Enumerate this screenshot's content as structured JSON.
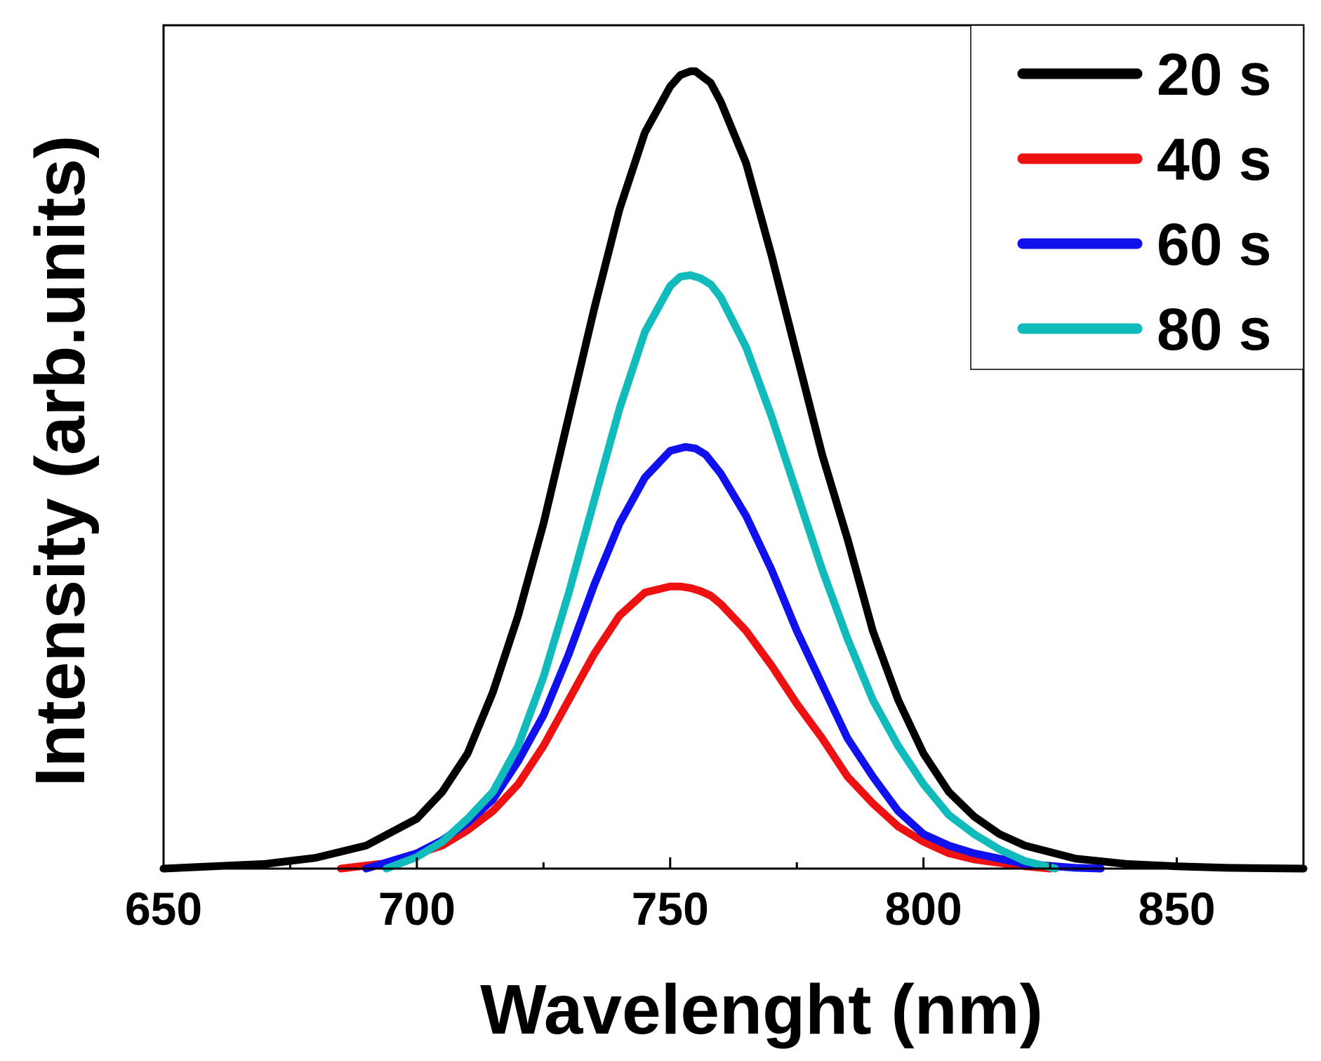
{
  "chart_data": {
    "type": "line",
    "title": "",
    "xlabel": "Wavelenght (nm)",
    "ylabel": "Intensity (arb.units)",
    "xlim": [
      650,
      875
    ],
    "ylim": [
      0,
      1.1
    ],
    "x_ticks": [
      650,
      700,
      750,
      800,
      850
    ],
    "x_tick_labels": [
      "650",
      "700",
      "750",
      "800",
      "850"
    ],
    "x_minor_ticks": [
      675,
      725,
      775,
      825
    ],
    "y_ticks_shown": false,
    "grid": false,
    "legend_position": "top-right",
    "series": [
      {
        "name": "20 s",
        "color": "#000000",
        "x": [
          650,
          670,
          680,
          690,
          700,
          705,
          710,
          715,
          720,
          725,
          730,
          735,
          740,
          745,
          750,
          752,
          754,
          755,
          756,
          758,
          760,
          765,
          770,
          775,
          780,
          785,
          790,
          795,
          800,
          805,
          810,
          815,
          820,
          830,
          840,
          850,
          860,
          875
        ],
        "y": [
          0.0,
          0.006,
          0.014,
          0.03,
          0.065,
          0.1,
          0.15,
          0.23,
          0.33,
          0.45,
          0.59,
          0.73,
          0.86,
          0.96,
          1.02,
          1.035,
          1.04,
          1.04,
          1.035,
          1.025,
          1.0,
          0.92,
          0.8,
          0.67,
          0.54,
          0.43,
          0.31,
          0.22,
          0.15,
          0.1,
          0.068,
          0.045,
          0.03,
          0.013,
          0.006,
          0.003,
          0.001,
          0.0
        ]
      },
      {
        "name": "40 s",
        "color": "#ee1111",
        "x": [
          685,
          695,
          705,
          710,
          715,
          720,
          725,
          730,
          735,
          740,
          745,
          750,
          752,
          754,
          756,
          758,
          760,
          765,
          770,
          775,
          780,
          785,
          790,
          795,
          800,
          805,
          810,
          820,
          825
        ],
        "y": [
          0.0,
          0.008,
          0.03,
          0.05,
          0.075,
          0.11,
          0.16,
          0.22,
          0.28,
          0.33,
          0.36,
          0.368,
          0.368,
          0.366,
          0.362,
          0.356,
          0.345,
          0.31,
          0.265,
          0.215,
          0.17,
          0.12,
          0.085,
          0.055,
          0.035,
          0.02,
          0.012,
          0.003,
          0.0
        ]
      },
      {
        "name": "60 s",
        "color": "#1111ee",
        "x": [
          690,
          700,
          705,
          710,
          715,
          720,
          725,
          730,
          735,
          740,
          745,
          750,
          753,
          755,
          757,
          760,
          765,
          770,
          775,
          780,
          785,
          790,
          795,
          800,
          805,
          810,
          820,
          830,
          835
        ],
        "y": [
          0.0,
          0.02,
          0.037,
          0.06,
          0.09,
          0.14,
          0.2,
          0.28,
          0.37,
          0.45,
          0.51,
          0.545,
          0.55,
          0.548,
          0.54,
          0.515,
          0.46,
          0.39,
          0.31,
          0.24,
          0.17,
          0.12,
          0.075,
          0.045,
          0.03,
          0.02,
          0.006,
          0.001,
          0.0
        ]
      },
      {
        "name": "80 s",
        "color": "#11bbbb",
        "x": [
          694,
          700,
          705,
          710,
          715,
          720,
          725,
          730,
          735,
          740,
          745,
          750,
          752,
          754,
          756,
          758,
          760,
          765,
          770,
          775,
          780,
          785,
          790,
          795,
          800,
          805,
          810,
          815,
          820,
          826
        ],
        "y": [
          0.0,
          0.015,
          0.035,
          0.065,
          0.1,
          0.16,
          0.25,
          0.36,
          0.48,
          0.6,
          0.7,
          0.76,
          0.772,
          0.774,
          0.77,
          0.762,
          0.745,
          0.68,
          0.59,
          0.49,
          0.39,
          0.3,
          0.22,
          0.16,
          0.11,
          0.07,
          0.045,
          0.025,
          0.01,
          0.0
        ]
      }
    ]
  }
}
